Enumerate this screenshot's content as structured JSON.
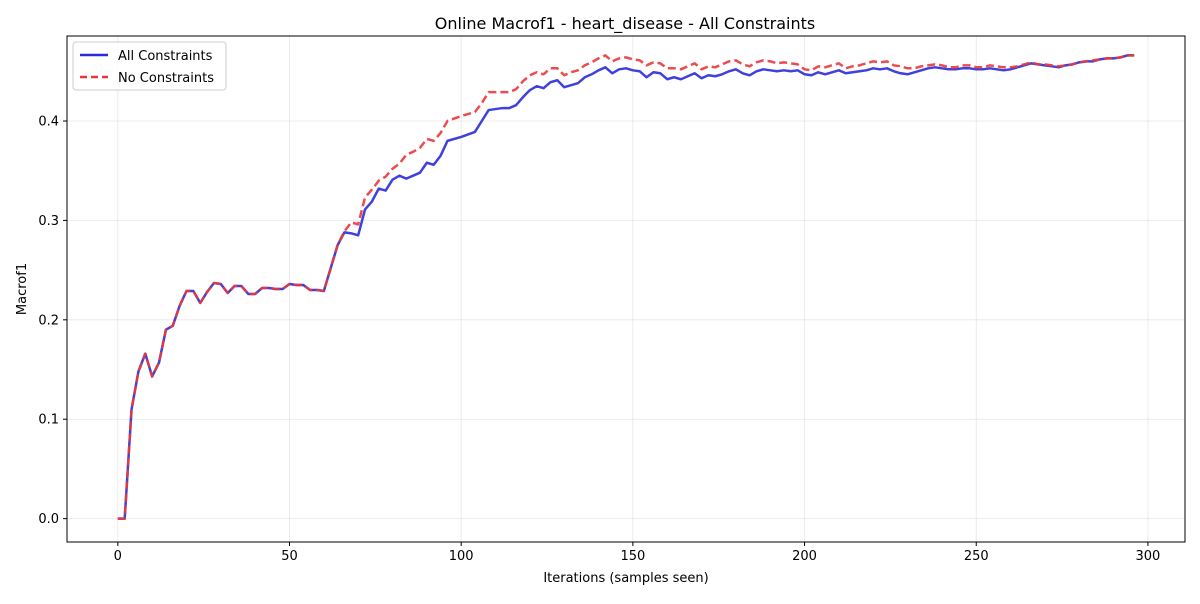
{
  "chart_data": {
    "type": "line",
    "title": "Online Macrof1 - heart_disease - All Constraints",
    "xlabel": "Iterations (samples seen)",
    "ylabel": "Macrof1",
    "xlim": [
      -14.8,
      310.8
    ],
    "ylim": [
      -0.0235,
      0.4855
    ],
    "xticks": [
      0,
      50,
      100,
      150,
      200,
      250,
      300
    ],
    "yticks": [
      0.0,
      0.1,
      0.2,
      0.3,
      0.4
    ],
    "xtick_labels": [
      "0",
      "50",
      "100",
      "150",
      "200",
      "250",
      "300"
    ],
    "ytick_labels": [
      "0.0",
      "0.1",
      "0.2",
      "0.3",
      "0.4"
    ],
    "grid": true,
    "legend_position": "top-left",
    "series": [
      {
        "name": "All Constraints",
        "color": "#2b2bd9",
        "style": "solid",
        "points": [
          [
            0,
            0.0
          ],
          [
            2,
            0.0
          ],
          [
            4,
            0.11
          ],
          [
            6,
            0.148
          ],
          [
            8,
            0.166
          ],
          [
            10,
            0.143
          ],
          [
            12,
            0.157
          ],
          [
            14,
            0.19
          ],
          [
            16,
            0.194
          ],
          [
            18,
            0.214
          ],
          [
            20,
            0.229
          ],
          [
            22,
            0.229
          ],
          [
            24,
            0.217
          ],
          [
            26,
            0.228
          ],
          [
            28,
            0.237
          ],
          [
            30,
            0.236
          ],
          [
            32,
            0.227
          ],
          [
            34,
            0.234
          ],
          [
            36,
            0.234
          ],
          [
            38,
            0.226
          ],
          [
            40,
            0.226
          ],
          [
            42,
            0.232
          ],
          [
            44,
            0.232
          ],
          [
            46,
            0.231
          ],
          [
            48,
            0.231
          ],
          [
            50,
            0.236
          ],
          [
            52,
            0.235
          ],
          [
            54,
            0.235
          ],
          [
            56,
            0.23
          ],
          [
            58,
            0.23
          ],
          [
            60,
            0.229
          ],
          [
            62,
            0.252
          ],
          [
            64,
            0.275
          ],
          [
            66,
            0.288
          ],
          [
            68,
            0.287
          ],
          [
            70,
            0.285
          ],
          [
            72,
            0.311
          ],
          [
            74,
            0.319
          ],
          [
            76,
            0.332
          ],
          [
            78,
            0.33
          ],
          [
            80,
            0.341
          ],
          [
            82,
            0.345
          ],
          [
            84,
            0.342
          ],
          [
            86,
            0.345
          ],
          [
            88,
            0.348
          ],
          [
            90,
            0.358
          ],
          [
            92,
            0.356
          ],
          [
            94,
            0.365
          ],
          [
            96,
            0.38
          ],
          [
            100,
            0.384
          ],
          [
            104,
            0.389
          ],
          [
            106,
            0.4
          ],
          [
            108,
            0.411
          ],
          [
            112,
            0.413
          ],
          [
            114,
            0.413
          ],
          [
            116,
            0.416
          ],
          [
            118,
            0.424
          ],
          [
            120,
            0.431
          ],
          [
            122,
            0.435
          ],
          [
            124,
            0.433
          ],
          [
            126,
            0.439
          ],
          [
            128,
            0.441
          ],
          [
            130,
            0.434
          ],
          [
            132,
            0.436
          ],
          [
            134,
            0.438
          ],
          [
            136,
            0.444
          ],
          [
            138,
            0.447
          ],
          [
            140,
            0.451
          ],
          [
            142,
            0.454
          ],
          [
            144,
            0.448
          ],
          [
            146,
            0.452
          ],
          [
            148,
            0.453
          ],
          [
            150,
            0.451
          ],
          [
            152,
            0.45
          ],
          [
            154,
            0.444
          ],
          [
            156,
            0.449
          ],
          [
            158,
            0.448
          ],
          [
            160,
            0.442
          ],
          [
            162,
            0.444
          ],
          [
            164,
            0.442
          ],
          [
            166,
            0.445
          ],
          [
            168,
            0.448
          ],
          [
            170,
            0.443
          ],
          [
            172,
            0.446
          ],
          [
            174,
            0.445
          ],
          [
            176,
            0.447
          ],
          [
            178,
            0.45
          ],
          [
            180,
            0.452
          ],
          [
            182,
            0.448
          ],
          [
            184,
            0.446
          ],
          [
            186,
            0.45
          ],
          [
            188,
            0.452
          ],
          [
            190,
            0.451
          ],
          [
            192,
            0.45
          ],
          [
            194,
            0.451
          ],
          [
            196,
            0.45
          ],
          [
            198,
            0.451
          ],
          [
            200,
            0.447
          ],
          [
            202,
            0.446
          ],
          [
            204,
            0.449
          ],
          [
            206,
            0.447
          ],
          [
            208,
            0.449
          ],
          [
            210,
            0.451
          ],
          [
            212,
            0.448
          ],
          [
            214,
            0.449
          ],
          [
            216,
            0.45
          ],
          [
            218,
            0.451
          ],
          [
            220,
            0.453
          ],
          [
            222,
            0.452
          ],
          [
            224,
            0.453
          ],
          [
            226,
            0.45
          ],
          [
            228,
            0.448
          ],
          [
            230,
            0.447
          ],
          [
            232,
            0.449
          ],
          [
            234,
            0.451
          ],
          [
            236,
            0.453
          ],
          [
            238,
            0.454
          ],
          [
            240,
            0.453
          ],
          [
            242,
            0.452
          ],
          [
            244,
            0.452
          ],
          [
            246,
            0.453
          ],
          [
            248,
            0.453
          ],
          [
            250,
            0.452
          ],
          [
            252,
            0.452
          ],
          [
            254,
            0.453
          ],
          [
            256,
            0.452
          ],
          [
            258,
            0.451
          ],
          [
            260,
            0.452
          ],
          [
            262,
            0.454
          ],
          [
            264,
            0.456
          ],
          [
            266,
            0.458
          ],
          [
            268,
            0.457
          ],
          [
            270,
            0.456
          ],
          [
            272,
            0.455
          ],
          [
            274,
            0.454
          ],
          [
            276,
            0.456
          ],
          [
            278,
            0.457
          ],
          [
            280,
            0.459
          ],
          [
            282,
            0.46
          ],
          [
            284,
            0.46
          ],
          [
            286,
            0.462
          ],
          [
            288,
            0.463
          ],
          [
            290,
            0.463
          ],
          [
            292,
            0.464
          ],
          [
            294,
            0.466
          ],
          [
            296,
            0.466
          ]
        ]
      },
      {
        "name": "No Constraints",
        "color": "#e8383d",
        "style": "dashed",
        "points": [
          [
            0,
            0.0
          ],
          [
            2,
            0.0
          ],
          [
            4,
            0.11
          ],
          [
            6,
            0.148
          ],
          [
            8,
            0.166
          ],
          [
            10,
            0.143
          ],
          [
            12,
            0.157
          ],
          [
            14,
            0.19
          ],
          [
            16,
            0.194
          ],
          [
            18,
            0.214
          ],
          [
            20,
            0.229
          ],
          [
            22,
            0.229
          ],
          [
            24,
            0.217
          ],
          [
            26,
            0.228
          ],
          [
            28,
            0.237
          ],
          [
            30,
            0.236
          ],
          [
            32,
            0.227
          ],
          [
            34,
            0.234
          ],
          [
            36,
            0.234
          ],
          [
            38,
            0.226
          ],
          [
            40,
            0.226
          ],
          [
            42,
            0.232
          ],
          [
            44,
            0.232
          ],
          [
            46,
            0.231
          ],
          [
            48,
            0.231
          ],
          [
            50,
            0.236
          ],
          [
            52,
            0.235
          ],
          [
            54,
            0.235
          ],
          [
            56,
            0.23
          ],
          [
            58,
            0.23
          ],
          [
            60,
            0.229
          ],
          [
            62,
            0.252
          ],
          [
            64,
            0.275
          ],
          [
            66,
            0.289
          ],
          [
            68,
            0.298
          ],
          [
            70,
            0.296
          ],
          [
            72,
            0.323
          ],
          [
            74,
            0.331
          ],
          [
            76,
            0.34
          ],
          [
            78,
            0.344
          ],
          [
            80,
            0.352
          ],
          [
            82,
            0.357
          ],
          [
            84,
            0.366
          ],
          [
            86,
            0.369
          ],
          [
            88,
            0.373
          ],
          [
            90,
            0.382
          ],
          [
            92,
            0.38
          ],
          [
            94,
            0.388
          ],
          [
            96,
            0.4
          ],
          [
            100,
            0.405
          ],
          [
            104,
            0.409
          ],
          [
            106,
            0.418
          ],
          [
            108,
            0.429
          ],
          [
            112,
            0.429
          ],
          [
            114,
            0.429
          ],
          [
            116,
            0.432
          ],
          [
            118,
            0.44
          ],
          [
            120,
            0.446
          ],
          [
            122,
            0.449
          ],
          [
            124,
            0.447
          ],
          [
            126,
            0.453
          ],
          [
            128,
            0.453
          ],
          [
            130,
            0.446
          ],
          [
            132,
            0.449
          ],
          [
            134,
            0.451
          ],
          [
            136,
            0.456
          ],
          [
            138,
            0.459
          ],
          [
            140,
            0.463
          ],
          [
            142,
            0.466
          ],
          [
            144,
            0.46
          ],
          [
            146,
            0.463
          ],
          [
            148,
            0.464
          ],
          [
            150,
            0.462
          ],
          [
            152,
            0.461
          ],
          [
            154,
            0.456
          ],
          [
            156,
            0.459
          ],
          [
            158,
            0.458
          ],
          [
            160,
            0.453
          ],
          [
            162,
            0.453
          ],
          [
            164,
            0.452
          ],
          [
            166,
            0.455
          ],
          [
            168,
            0.458
          ],
          [
            170,
            0.452
          ],
          [
            172,
            0.455
          ],
          [
            174,
            0.454
          ],
          [
            176,
            0.457
          ],
          [
            178,
            0.46
          ],
          [
            180,
            0.461
          ],
          [
            182,
            0.457
          ],
          [
            184,
            0.455
          ],
          [
            186,
            0.459
          ],
          [
            188,
            0.461
          ],
          [
            190,
            0.46
          ],
          [
            192,
            0.458
          ],
          [
            194,
            0.459
          ],
          [
            196,
            0.458
          ],
          [
            198,
            0.457
          ],
          [
            200,
            0.452
          ],
          [
            202,
            0.451
          ],
          [
            204,
            0.455
          ],
          [
            206,
            0.454
          ],
          [
            208,
            0.456
          ],
          [
            210,
            0.458
          ],
          [
            212,
            0.453
          ],
          [
            214,
            0.455
          ],
          [
            216,
            0.456
          ],
          [
            218,
            0.458
          ],
          [
            220,
            0.46
          ],
          [
            222,
            0.459
          ],
          [
            224,
            0.46
          ],
          [
            226,
            0.456
          ],
          [
            228,
            0.455
          ],
          [
            230,
            0.453
          ],
          [
            232,
            0.453
          ],
          [
            234,
            0.455
          ],
          [
            236,
            0.456
          ],
          [
            238,
            0.457
          ],
          [
            240,
            0.456
          ],
          [
            242,
            0.454
          ],
          [
            244,
            0.454
          ],
          [
            246,
            0.456
          ],
          [
            248,
            0.456
          ],
          [
            250,
            0.454
          ],
          [
            252,
            0.454
          ],
          [
            254,
            0.456
          ],
          [
            256,
            0.455
          ],
          [
            258,
            0.454
          ],
          [
            260,
            0.454
          ],
          [
            262,
            0.455
          ],
          [
            264,
            0.457
          ],
          [
            266,
            0.459
          ],
          [
            268,
            0.457
          ],
          [
            270,
            0.457
          ],
          [
            272,
            0.456
          ],
          [
            274,
            0.455
          ],
          [
            276,
            0.456
          ],
          [
            278,
            0.457
          ],
          [
            280,
            0.459
          ],
          [
            282,
            0.46
          ],
          [
            284,
            0.461
          ],
          [
            286,
            0.462
          ],
          [
            288,
            0.463
          ],
          [
            290,
            0.463
          ],
          [
            292,
            0.464
          ],
          [
            294,
            0.466
          ],
          [
            296,
            0.466
          ]
        ]
      }
    ]
  }
}
